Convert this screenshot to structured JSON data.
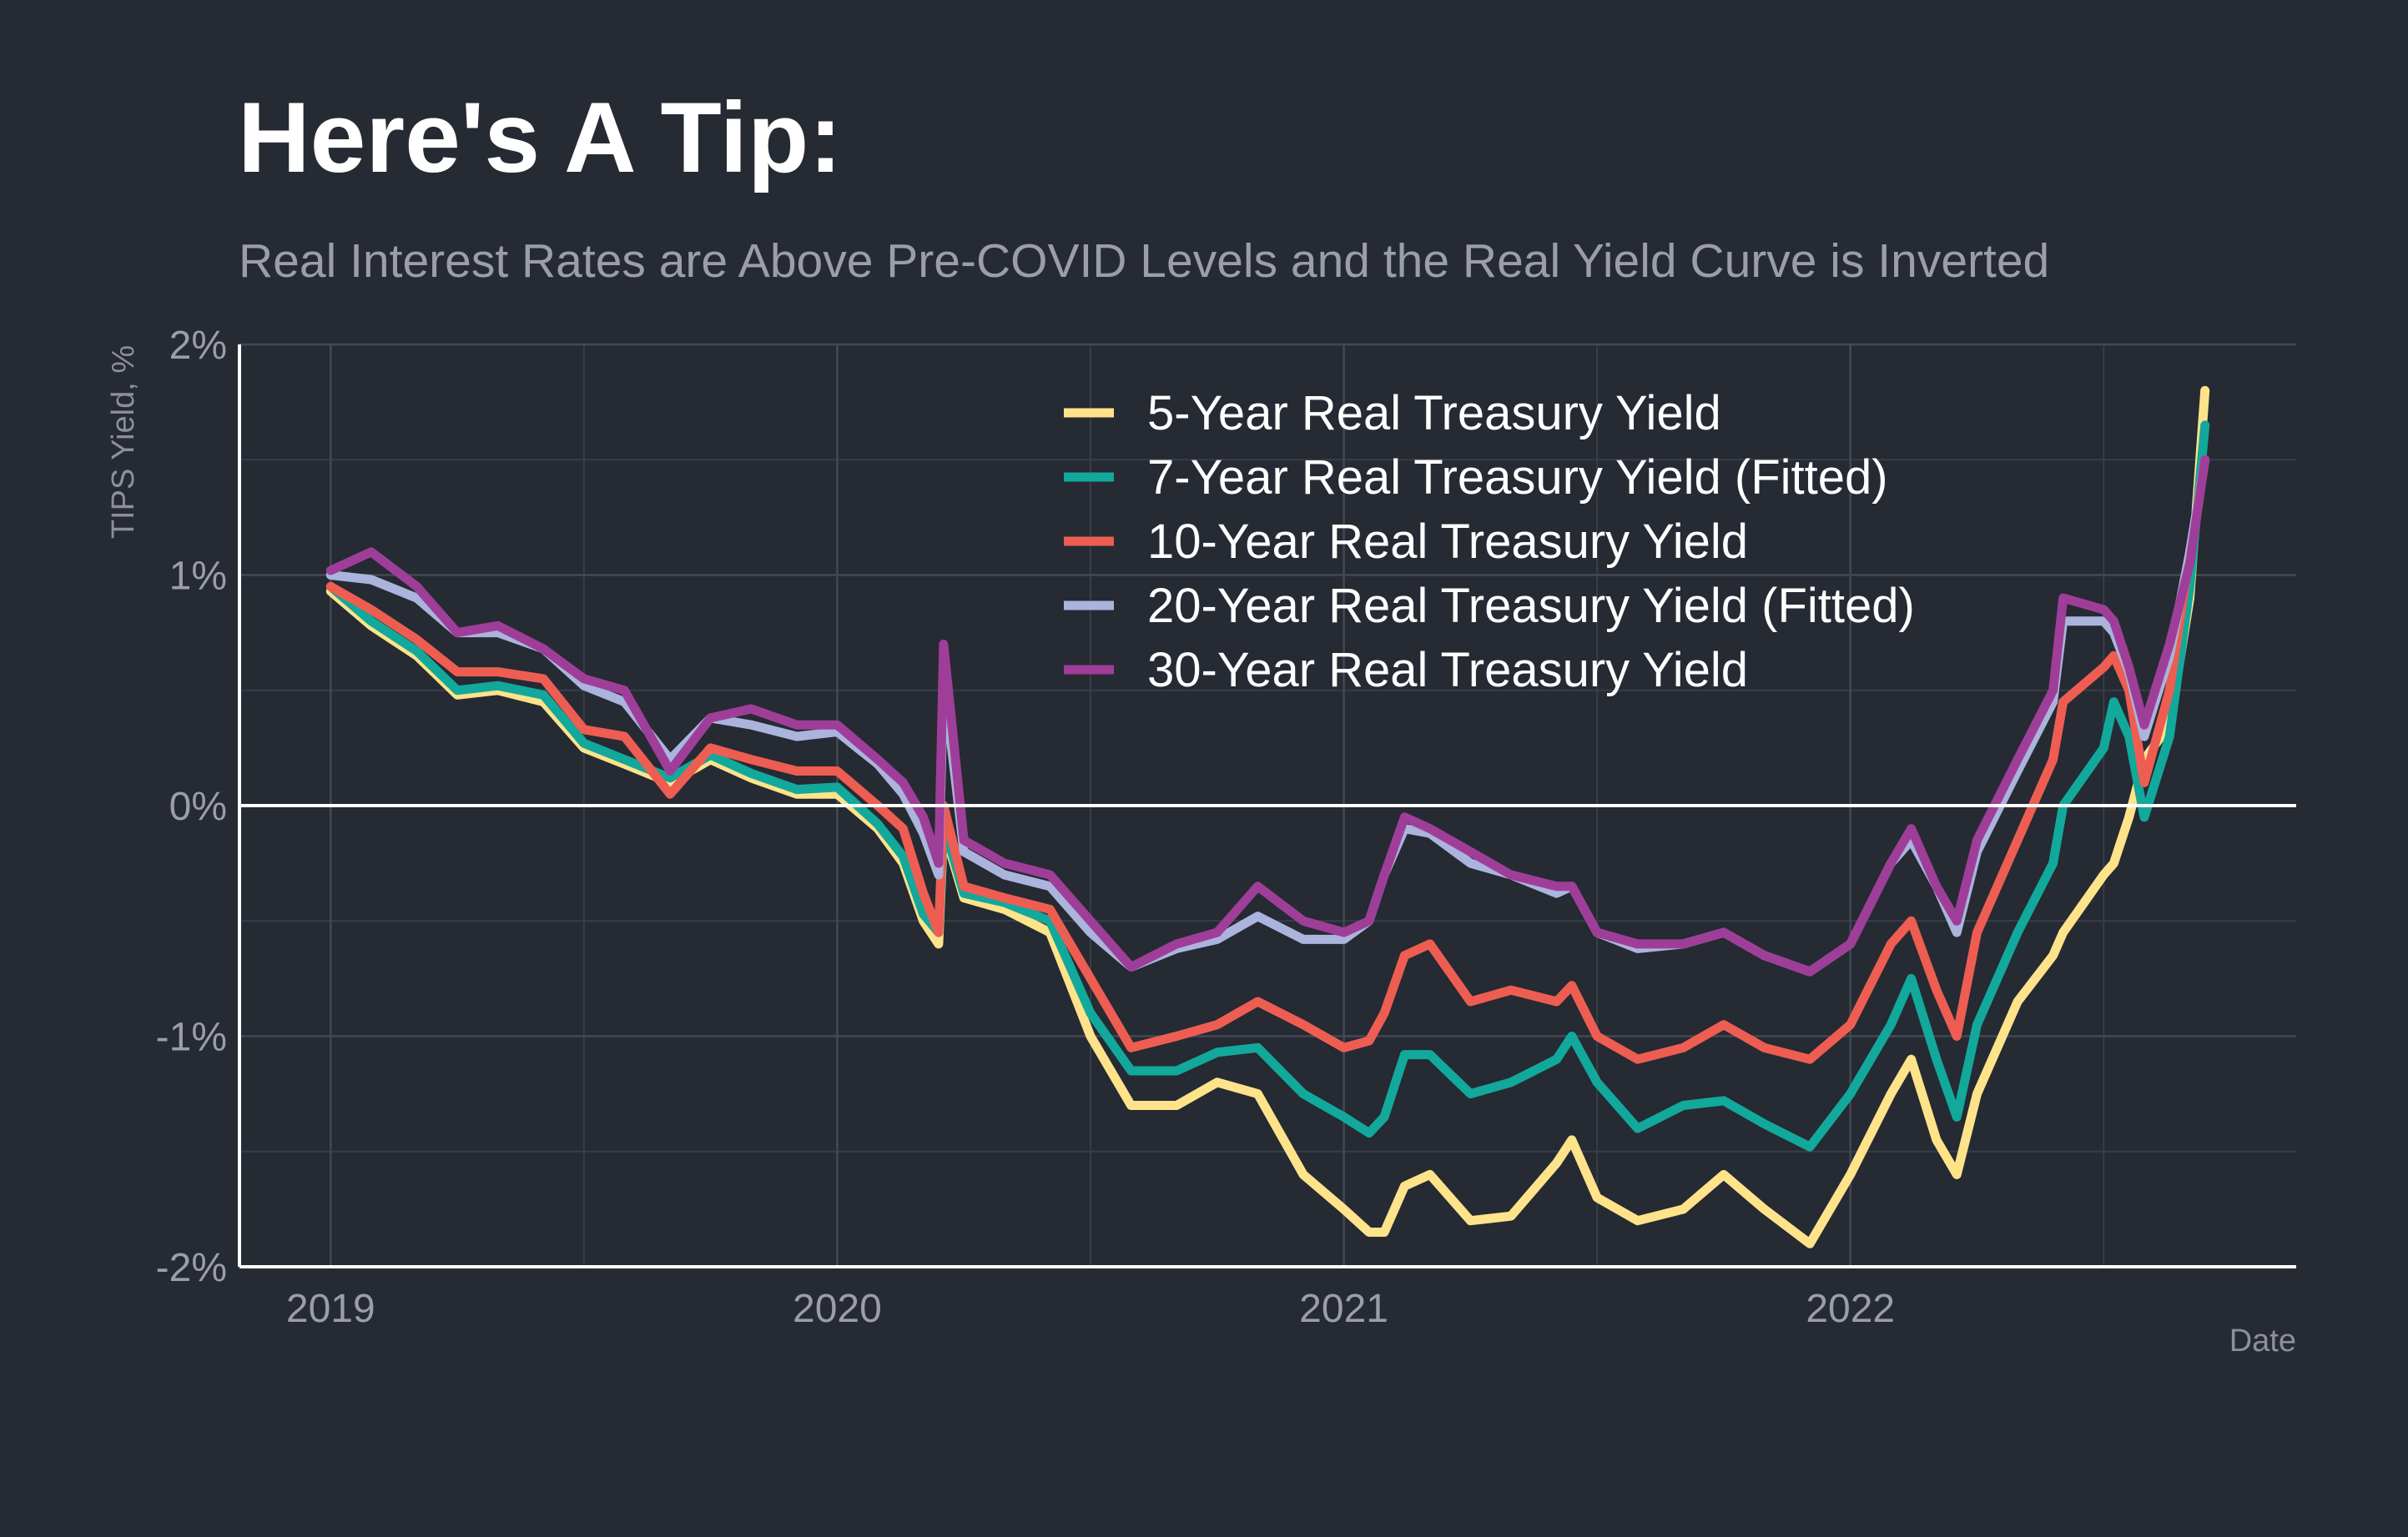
{
  "chart_data": {
    "type": "line",
    "title": "Here's A Tip:",
    "subtitle": "Real Interest Rates are Above Pre-COVID Levels and the Real Yield Curve is Inverted",
    "xlabel": "Date",
    "ylabel": "TIPS Yield, %",
    "xlim": [
      2018.82,
      2022.88
    ],
    "ylim": [
      -2,
      2
    ],
    "x_ticks": [
      2019,
      2020,
      2021,
      2022
    ],
    "x_tick_labels": [
      "2019",
      "2020",
      "2021",
      "2022"
    ],
    "y_ticks": [
      -2,
      -1,
      0,
      1,
      2
    ],
    "y_tick_labels": [
      "-2%",
      "-1%",
      "0%",
      "1%",
      "2%"
    ],
    "grid": true,
    "legend_position": "top-right",
    "series": [
      {
        "name": "5-Year Real Treasury Yield",
        "color": "#ffe38a",
        "x": [
          2019.0,
          2019.08,
          2019.17,
          2019.25,
          2019.33,
          2019.42,
          2019.5,
          2019.58,
          2019.67,
          2019.75,
          2019.83,
          2019.92,
          2020.0,
          2020.08,
          2020.13,
          2020.17,
          2020.2,
          2020.21,
          2020.25,
          2020.33,
          2020.42,
          2020.5,
          2020.58,
          2020.67,
          2020.75,
          2020.83,
          2020.92,
          2021.0,
          2021.05,
          2021.08,
          2021.12,
          2021.17,
          2021.25,
          2021.33,
          2021.42,
          2021.45,
          2021.5,
          2021.58,
          2021.67,
          2021.75,
          2021.83,
          2021.92,
          2022.0,
          2022.08,
          2022.12,
          2022.17,
          2022.21,
          2022.25,
          2022.33,
          2022.4,
          2022.42,
          2022.5,
          2022.52,
          2022.55,
          2022.58,
          2022.63,
          2022.67,
          2022.7
        ],
        "values": [
          0.93,
          0.78,
          0.65,
          0.48,
          0.5,
          0.45,
          0.25,
          0.18,
          0.1,
          0.2,
          0.12,
          0.05,
          0.05,
          -0.1,
          -0.25,
          -0.5,
          -0.6,
          -0.1,
          -0.4,
          -0.45,
          -0.55,
          -1.0,
          -1.3,
          -1.3,
          -1.2,
          -1.25,
          -1.6,
          -1.75,
          -1.85,
          -1.85,
          -1.65,
          -1.6,
          -1.8,
          -1.78,
          -1.55,
          -1.45,
          -1.7,
          -1.8,
          -1.75,
          -1.6,
          -1.75,
          -1.9,
          -1.6,
          -1.25,
          -1.1,
          -1.45,
          -1.6,
          -1.25,
          -0.85,
          -0.65,
          -0.55,
          -0.3,
          -0.25,
          -0.05,
          0.2,
          0.35,
          0.9,
          1.8
        ]
      },
      {
        "name": "7-Year Real Treasury Yield (Fitted)",
        "color": "#12a89c",
        "x": [
          2019.0,
          2019.08,
          2019.17,
          2019.25,
          2019.33,
          2019.42,
          2019.5,
          2019.58,
          2019.67,
          2019.75,
          2019.83,
          2019.92,
          2020.0,
          2020.08,
          2020.13,
          2020.17,
          2020.2,
          2020.21,
          2020.25,
          2020.33,
          2020.42,
          2020.5,
          2020.58,
          2020.67,
          2020.75,
          2020.83,
          2020.92,
          2021.0,
          2021.05,
          2021.08,
          2021.12,
          2021.17,
          2021.25,
          2021.33,
          2021.42,
          2021.45,
          2021.5,
          2021.58,
          2021.67,
          2021.75,
          2021.83,
          2021.92,
          2022.0,
          2022.08,
          2022.12,
          2022.17,
          2022.21,
          2022.25,
          2022.33,
          2022.4,
          2022.42,
          2022.5,
          2022.52,
          2022.55,
          2022.58,
          2022.63,
          2022.67,
          2022.7
        ],
        "values": [
          0.95,
          0.8,
          0.67,
          0.5,
          0.52,
          0.48,
          0.27,
          0.2,
          0.12,
          0.22,
          0.14,
          0.07,
          0.08,
          -0.08,
          -0.22,
          -0.47,
          -0.55,
          -0.08,
          -0.38,
          -0.42,
          -0.5,
          -0.9,
          -1.15,
          -1.15,
          -1.07,
          -1.05,
          -1.25,
          -1.35,
          -1.42,
          -1.35,
          -1.08,
          -1.08,
          -1.25,
          -1.2,
          -1.1,
          -1.0,
          -1.2,
          -1.4,
          -1.3,
          -1.28,
          -1.38,
          -1.48,
          -1.25,
          -0.95,
          -0.75,
          -1.1,
          -1.35,
          -0.95,
          -0.55,
          -0.25,
          0.0,
          0.25,
          0.45,
          0.3,
          -0.05,
          0.3,
          0.95,
          1.65
        ]
      },
      {
        "name": "10-Year Real Treasury Yield",
        "color": "#ee5d52",
        "x": [
          2019.0,
          2019.08,
          2019.17,
          2019.25,
          2019.33,
          2019.42,
          2019.5,
          2019.58,
          2019.67,
          2019.75,
          2019.83,
          2019.92,
          2020.0,
          2020.08,
          2020.13,
          2020.17,
          2020.2,
          2020.21,
          2020.25,
          2020.33,
          2020.42,
          2020.5,
          2020.58,
          2020.67,
          2020.75,
          2020.83,
          2020.92,
          2021.0,
          2021.05,
          2021.08,
          2021.12,
          2021.17,
          2021.25,
          2021.33,
          2021.42,
          2021.45,
          2021.5,
          2021.58,
          2021.67,
          2021.75,
          2021.83,
          2021.92,
          2022.0,
          2022.08,
          2022.12,
          2022.17,
          2022.21,
          2022.25,
          2022.33,
          2022.4,
          2022.42,
          2022.5,
          2022.52,
          2022.55,
          2022.58,
          2022.63,
          2022.67,
          2022.7
        ],
        "values": [
          0.95,
          0.85,
          0.72,
          0.58,
          0.58,
          0.55,
          0.33,
          0.3,
          0.05,
          0.25,
          0.2,
          0.15,
          0.15,
          0.0,
          -0.1,
          -0.38,
          -0.55,
          0.0,
          -0.35,
          -0.4,
          -0.45,
          -0.75,
          -1.05,
          -1.0,
          -0.95,
          -0.85,
          -0.95,
          -1.05,
          -1.02,
          -0.9,
          -0.65,
          -0.6,
          -0.85,
          -0.8,
          -0.85,
          -0.78,
          -1.0,
          -1.1,
          -1.05,
          -0.95,
          -1.05,
          -1.1,
          -0.95,
          -0.6,
          -0.5,
          -0.8,
          -1.0,
          -0.55,
          -0.15,
          0.2,
          0.45,
          0.6,
          0.65,
          0.5,
          0.1,
          0.5,
          1.1,
          1.5
        ]
      },
      {
        "name": "20-Year Real Treasury Yield (Fitted)",
        "color": "#aab4dc",
        "x": [
          2019.0,
          2019.08,
          2019.17,
          2019.25,
          2019.33,
          2019.42,
          2019.5,
          2019.58,
          2019.67,
          2019.75,
          2019.83,
          2019.92,
          2020.0,
          2020.08,
          2020.13,
          2020.17,
          2020.2,
          2020.21,
          2020.25,
          2020.33,
          2020.42,
          2020.5,
          2020.58,
          2020.67,
          2020.75,
          2020.83,
          2020.92,
          2021.0,
          2021.05,
          2021.08,
          2021.12,
          2021.17,
          2021.25,
          2021.33,
          2021.42,
          2021.45,
          2021.5,
          2021.58,
          2021.67,
          2021.75,
          2021.83,
          2021.92,
          2022.0,
          2022.08,
          2022.12,
          2022.17,
          2022.21,
          2022.25,
          2022.33,
          2022.4,
          2022.42,
          2022.5,
          2022.52,
          2022.55,
          2022.58,
          2022.63,
          2022.67,
          2022.7
        ],
        "values": [
          1.0,
          0.98,
          0.9,
          0.75,
          0.75,
          0.68,
          0.52,
          0.45,
          0.2,
          0.38,
          0.35,
          0.3,
          0.32,
          0.18,
          0.05,
          -0.12,
          -0.3,
          0.55,
          -0.2,
          -0.3,
          -0.35,
          -0.55,
          -0.7,
          -0.62,
          -0.58,
          -0.48,
          -0.58,
          -0.58,
          -0.5,
          -0.3,
          -0.1,
          -0.12,
          -0.25,
          -0.3,
          -0.38,
          -0.35,
          -0.55,
          -0.62,
          -0.6,
          -0.55,
          -0.65,
          -0.72,
          -0.6,
          -0.25,
          -0.15,
          -0.35,
          -0.55,
          -0.2,
          0.15,
          0.45,
          0.8,
          0.8,
          0.75,
          0.58,
          0.3,
          0.65,
          1.1,
          1.5
        ]
      },
      {
        "name": "30-Year Real Treasury Yield",
        "color": "#9f3e98",
        "x": [
          2019.0,
          2019.08,
          2019.17,
          2019.25,
          2019.33,
          2019.42,
          2019.5,
          2019.58,
          2019.67,
          2019.75,
          2019.83,
          2019.92,
          2020.0,
          2020.08,
          2020.13,
          2020.17,
          2020.2,
          2020.21,
          2020.25,
          2020.33,
          2020.42,
          2020.5,
          2020.58,
          2020.67,
          2020.75,
          2020.83,
          2020.92,
          2021.0,
          2021.05,
          2021.08,
          2021.12,
          2021.17,
          2021.25,
          2021.33,
          2021.42,
          2021.45,
          2021.5,
          2021.58,
          2021.67,
          2021.75,
          2021.83,
          2021.92,
          2022.0,
          2022.08,
          2022.12,
          2022.17,
          2022.21,
          2022.25,
          2022.33,
          2022.4,
          2022.42,
          2022.5,
          2022.52,
          2022.55,
          2022.58,
          2022.63,
          2022.67,
          2022.7
        ],
        "values": [
          1.02,
          1.1,
          0.95,
          0.75,
          0.78,
          0.68,
          0.55,
          0.5,
          0.15,
          0.38,
          0.42,
          0.35,
          0.35,
          0.2,
          0.1,
          -0.05,
          -0.25,
          0.7,
          -0.15,
          -0.25,
          -0.3,
          -0.5,
          -0.7,
          -0.6,
          -0.55,
          -0.35,
          -0.5,
          -0.55,
          -0.5,
          -0.3,
          -0.05,
          -0.1,
          -0.2,
          -0.3,
          -0.35,
          -0.35,
          -0.55,
          -0.6,
          -0.6,
          -0.55,
          -0.65,
          -0.72,
          -0.6,
          -0.25,
          -0.1,
          -0.35,
          -0.5,
          -0.15,
          0.2,
          0.5,
          0.9,
          0.85,
          0.8,
          0.6,
          0.35,
          0.7,
          1.05,
          1.5
        ]
      }
    ]
  }
}
